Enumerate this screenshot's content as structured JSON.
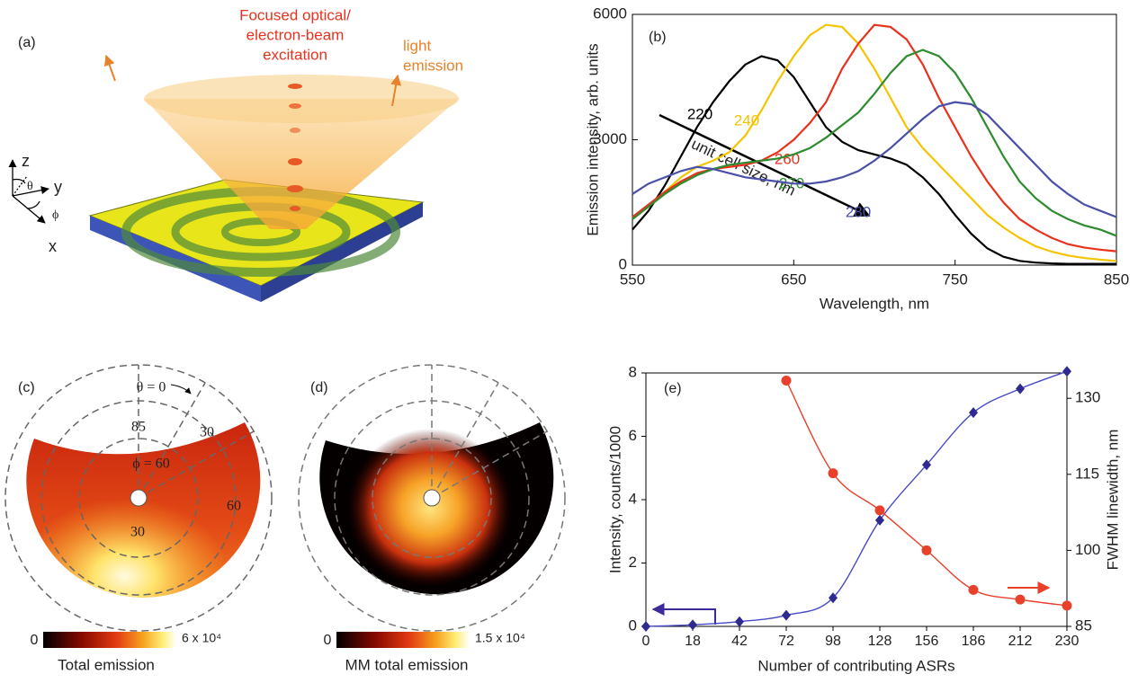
{
  "panel_a": {
    "label": "(a)",
    "excitation": [
      "Focused optical/",
      "electron-beam",
      "excitation"
    ],
    "emission": [
      "light",
      "emission"
    ],
    "axes": {
      "z": "z",
      "y": "y",
      "x": "x",
      "theta": "θ",
      "phi": "ϕ"
    }
  },
  "chart_data": [
    {
      "type": "line",
      "panel_label": "(b)",
      "xlabel": "Wavelength, nm",
      "ylabel": "Emission intensity, arb. units",
      "annotation": "unit cell size, nm",
      "x": [
        550,
        560,
        570,
        580,
        590,
        600,
        610,
        620,
        630,
        640,
        650,
        660,
        670,
        680,
        690,
        700,
        710,
        720,
        730,
        740,
        750,
        760,
        770,
        780,
        790,
        800,
        810,
        820,
        830,
        840,
        850
      ],
      "series": [
        {
          "name": "220",
          "color": "#000000",
          "values": [
            850,
            1300,
            1900,
            2600,
            3300,
            3900,
            4400,
            4800,
            5000,
            4900,
            4500,
            3900,
            3300,
            2950,
            2750,
            2650,
            2550,
            2400,
            2100,
            1700,
            1200,
            750,
            400,
            200,
            100,
            60,
            40,
            30,
            30,
            30,
            30
          ]
        },
        {
          "name": "240",
          "color": "#f5c400",
          "values": [
            1100,
            1400,
            1750,
            2100,
            2350,
            2500,
            2700,
            3100,
            3700,
            4400,
            5000,
            5500,
            5750,
            5700,
            5300,
            4700,
            4000,
            3300,
            2800,
            2400,
            2000,
            1600,
            1200,
            900,
            650,
            450,
            320,
            230,
            170,
            130,
            100
          ]
        },
        {
          "name": "260",
          "color": "#e8321e",
          "values": [
            1150,
            1450,
            1750,
            2000,
            2200,
            2300,
            2350,
            2400,
            2500,
            2700,
            3000,
            3400,
            3900,
            4700,
            5300,
            5750,
            5700,
            5400,
            4800,
            4000,
            3300,
            2600,
            2000,
            1500,
            1100,
            850,
            650,
            500,
            420,
            370,
            330
          ]
        },
        {
          "name": "270",
          "color": "#2e8b2e",
          "values": [
            1100,
            1400,
            1700,
            1950,
            2150,
            2300,
            2400,
            2450,
            2500,
            2550,
            2650,
            2800,
            3050,
            3350,
            3650,
            4100,
            4600,
            5000,
            5150,
            5000,
            4600,
            4000,
            3300,
            2600,
            2000,
            1600,
            1300,
            1100,
            950,
            850,
            700
          ]
        },
        {
          "name": "280",
          "color": "#4a50a8",
          "values": [
            1700,
            1950,
            2100,
            2250,
            2350,
            2300,
            2200,
            2100,
            2050,
            2000,
            1950,
            1950,
            2000,
            2100,
            2250,
            2500,
            2800,
            3150,
            3500,
            3800,
            3900,
            3850,
            3600,
            3200,
            2800,
            2400,
            2000,
            1700,
            1450,
            1300,
            1150
          ]
        }
      ],
      "xlim": [
        550,
        850
      ],
      "xticks": [
        550,
        650,
        750,
        850
      ],
      "ylim": [
        0,
        6000
      ],
      "yticks": [
        0,
        3000,
        6000
      ]
    },
    {
      "type": "line",
      "panel_label": "(e)",
      "xlabel": "Number of contributing ASRs",
      "ylabel": "Intensity, counts/1000",
      "y2label": "FWHM linewidth, nm",
      "categories": [
        "0",
        "18",
        "42",
        "72",
        "98",
        "128",
        "156",
        "186",
        "212",
        "230"
      ],
      "series": [
        {
          "color": "#2e2a8f",
          "line_color": "#4a4ac8",
          "marker": "diamond",
          "values": [
            0,
            0.05,
            0.15,
            0.35,
            0.9,
            3.35,
            5.1,
            6.75,
            7.5,
            8.05
          ]
        },
        {
          "color": "#e8402a",
          "line_color": "#e8402a",
          "marker": "circle",
          "axis": "y2",
          "values": [
            null,
            null,
            null,
            133.5,
            115.2,
            107.9,
            100,
            92.2,
            90.3,
            89.1
          ]
        }
      ],
      "ylim": [
        0,
        8
      ],
      "yticks": [
        0,
        2,
        4,
        6,
        8
      ],
      "y2lim": [
        85,
        135
      ],
      "y2ticks": [
        85,
        100,
        115,
        130
      ]
    }
  ],
  "panel_c": {
    "label": "(c)",
    "theta0": "θ = 0",
    "r85": "85",
    "r30": "30",
    "phi60": "ϕ = 60",
    "a60": "60",
    "a30": "30",
    "cbar_min": "0",
    "cbar_max": "6 x 10⁴",
    "caption": "Total emission"
  },
  "panel_d": {
    "label": "(d)",
    "cbar_min": "0",
    "cbar_max": "1.5 x 10⁴",
    "caption": "MM total emission"
  }
}
